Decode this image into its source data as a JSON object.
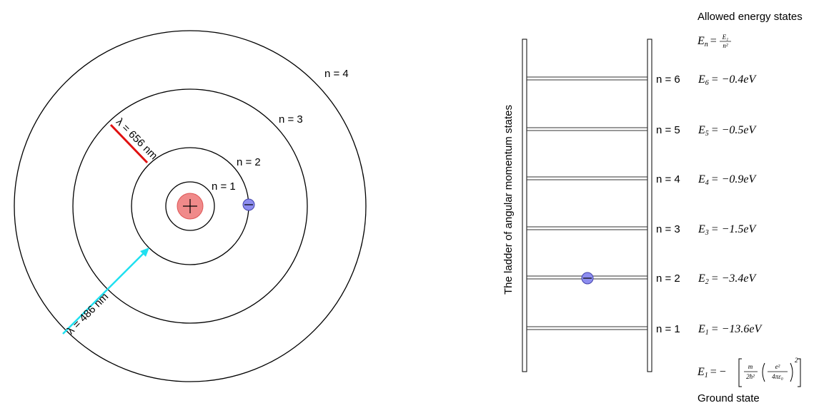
{
  "atom": {
    "orbits": [
      {
        "label": "n = 1"
      },
      {
        "label": "n = 2"
      },
      {
        "label": "n = 3"
      },
      {
        "label": "n = 4"
      }
    ],
    "transitions": [
      {
        "label": "λ = 656 nm"
      },
      {
        "label": "λ = 486 nm"
      }
    ]
  },
  "ladder": {
    "title": "The ladder of angular momentum states",
    "levels": [
      {
        "label": "n = 6",
        "symbol": "E",
        "subscript": "6",
        "value": "= −0.4eV"
      },
      {
        "label": "n = 5",
        "symbol": "E",
        "subscript": "5",
        "value": "= −0.5eV"
      },
      {
        "label": "n = 4",
        "symbol": "E",
        "subscript": "4",
        "value": "= −0.9eV"
      },
      {
        "label": "n = 3",
        "symbol": "E",
        "subscript": "3",
        "value": "= −1.5eV"
      },
      {
        "label": "n = 2",
        "symbol": "E",
        "subscript": "2",
        "value": "= −3.4eV"
      },
      {
        "label": "n = 1",
        "symbol": "E",
        "subscript": "1",
        "value": "= −13.6eV"
      }
    ]
  },
  "energy_panel": {
    "title": "Allowed energy states",
    "general_formula": {
      "symbol": "E",
      "subscript": "n",
      "equals": "=",
      "numerator": "E₁",
      "denominator": "n²"
    },
    "ground_formula": {
      "symbol": "E",
      "subscript": "1",
      "equals": "= −",
      "numerator_1": "m",
      "denominator_1": "2ħ²",
      "numerator_2": "e²",
      "denominator_2": "4πε₀",
      "exponent": "2"
    },
    "ground_label": "Ground state"
  }
}
